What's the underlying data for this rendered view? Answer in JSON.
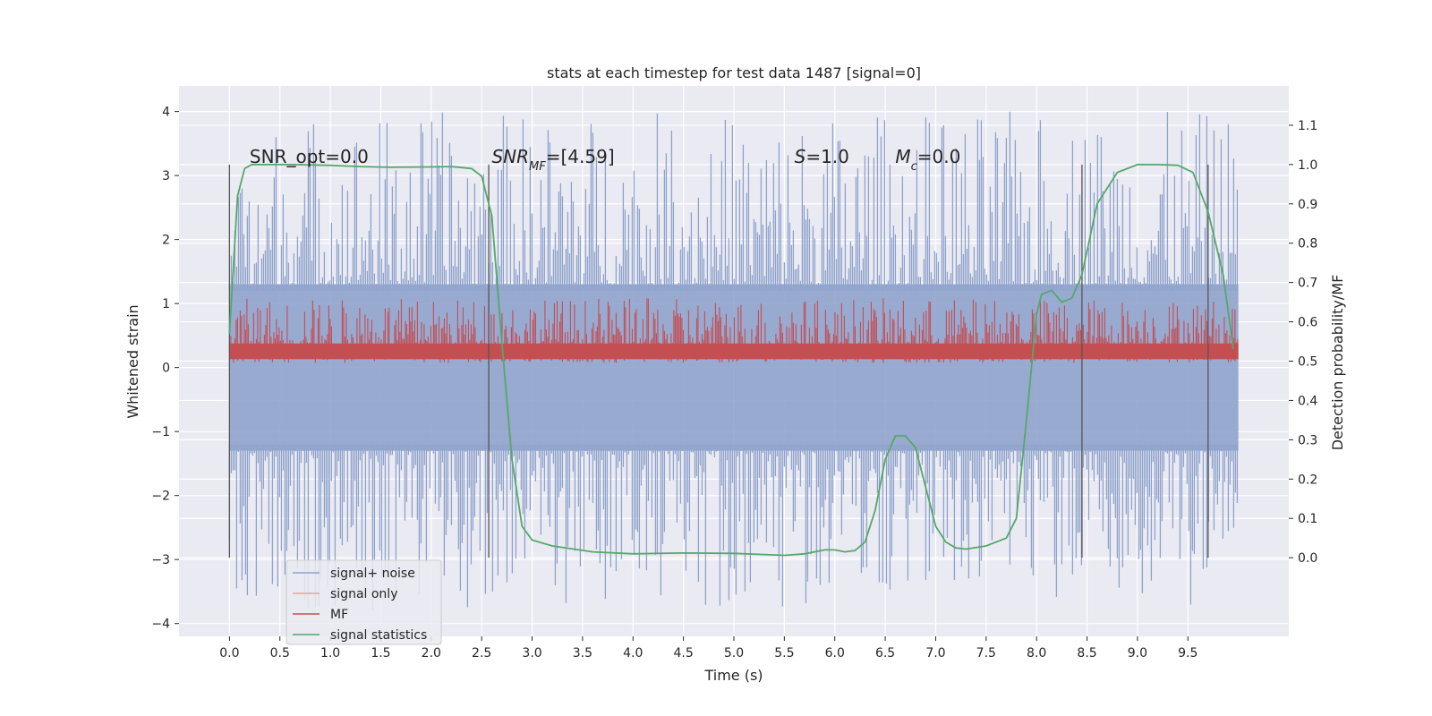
{
  "chart_data": {
    "type": "line",
    "title": "stats at each timestep for test data 1487 [signal=0]",
    "xlabel": "Time (s)",
    "ylabel": "Whitened strain",
    "y2label": "Detection probability/MF",
    "xlim": [
      -0.5,
      10.5
    ],
    "ylim": [
      -4.2,
      4.4
    ],
    "y2lim": [
      -0.2,
      1.2
    ],
    "xticks": [
      0.0,
      0.5,
      1.0,
      1.5,
      2.0,
      2.5,
      3.0,
      3.5,
      4.0,
      4.5,
      5.0,
      5.5,
      6.0,
      6.5,
      7.0,
      7.5,
      8.0,
      8.5,
      9.0,
      9.5
    ],
    "xtick_labels": [
      "0.0",
      "0.5",
      "1.0",
      "1.5",
      "2.0",
      "2.5",
      "3.0",
      "3.5",
      "4.0",
      "4.5",
      "5.0",
      "5.5",
      "6.0",
      "6.5",
      "7.0",
      "7.5",
      "8.0",
      "8.5",
      "9.0",
      "9.5"
    ],
    "yticks": [
      -4,
      -3,
      -2,
      -1,
      0,
      1,
      2,
      3,
      4
    ],
    "ytick_labels": [
      "−4",
      "−3",
      "−2",
      "−1",
      "0",
      "1",
      "2",
      "3",
      "4"
    ],
    "y2ticks": [
      0.0,
      0.1,
      0.2,
      0.3,
      0.4,
      0.5,
      0.6,
      0.7,
      0.8,
      0.9,
      1.0,
      1.1
    ],
    "y2tick_labels": [
      "0.0",
      "0.1",
      "0.2",
      "0.3",
      "0.4",
      "0.5",
      "0.6",
      "0.7",
      "0.8",
      "0.9",
      "1.0",
      "1.1"
    ],
    "grid": true,
    "legend_position": "lower-left",
    "colors": {
      "background": "#eaeaf2",
      "grid": "#ffffff",
      "noise": "#8fa3cc",
      "signal_only": "#e8a98c",
      "mf": "#c44e52",
      "stats": "#55a868",
      "vlines": "#555555"
    },
    "series": [
      {
        "name": "signal+ noise",
        "axis": "left",
        "description_levels": {
          "x_range": [
            0.0,
            10.0
          ],
          "band_low": -1.3,
          "band_high": 1.3,
          "peak_max": 4.0,
          "peak_min": -3.8
        }
      },
      {
        "name": "signal only",
        "axis": "left",
        "values": []
      },
      {
        "name": "MF",
        "axis": "right",
        "x_range": [
          0.0,
          10.0
        ],
        "base_level": 0.52,
        "peak_max": 0.66
      },
      {
        "name": "signal statistics",
        "axis": "right",
        "x": [
          0.0,
          0.08,
          0.15,
          0.22,
          0.35,
          0.6,
          1.0,
          1.3,
          1.6,
          2.0,
          2.2,
          2.4,
          2.5,
          2.6,
          2.7,
          2.8,
          2.9,
          3.0,
          3.2,
          3.6,
          4.0,
          4.5,
          5.0,
          5.3,
          5.5,
          5.7,
          5.9,
          6.0,
          6.1,
          6.2,
          6.3,
          6.4,
          6.5,
          6.6,
          6.7,
          6.8,
          6.9,
          7.0,
          7.1,
          7.2,
          7.3,
          7.5,
          7.7,
          7.8,
          7.9,
          8.0,
          8.05,
          8.15,
          8.25,
          8.35,
          8.45,
          8.6,
          8.8,
          9.0,
          9.2,
          9.4,
          9.55,
          9.7,
          9.85,
          9.95
        ],
        "values": [
          0.57,
          0.92,
          0.99,
          1.0,
          1.0,
          1.0,
          0.998,
          0.995,
          0.993,
          0.994,
          0.995,
          0.99,
          0.97,
          0.87,
          0.55,
          0.25,
          0.08,
          0.045,
          0.03,
          0.015,
          0.01,
          0.012,
          0.011,
          0.008,
          0.006,
          0.01,
          0.02,
          0.02,
          0.015,
          0.018,
          0.04,
          0.12,
          0.25,
          0.31,
          0.31,
          0.28,
          0.18,
          0.08,
          0.04,
          0.025,
          0.022,
          0.03,
          0.05,
          0.1,
          0.35,
          0.62,
          0.67,
          0.68,
          0.65,
          0.66,
          0.72,
          0.9,
          0.98,
          1.0,
          1.0,
          0.998,
          0.98,
          0.88,
          0.72,
          0.53
        ]
      }
    ],
    "vlines_x": [
      0.0,
      2.57,
      8.45,
      9.7
    ],
    "annotations": [
      {
        "x": 0.2,
        "y2": 1.0,
        "text": "SNR_opt=0.0"
      },
      {
        "x": 2.6,
        "y2": 1.0,
        "text": "[4.59]",
        "prefix_italic": "SNR",
        "sub": "MF",
        "eq": "="
      },
      {
        "x": 5.6,
        "y2": 1.0,
        "text": "=1.0",
        "prefix_italic": "S"
      },
      {
        "x": 6.6,
        "y2": 1.0,
        "text": "=0.0",
        "prefix_italic": "M",
        "sub": "c"
      }
    ]
  }
}
